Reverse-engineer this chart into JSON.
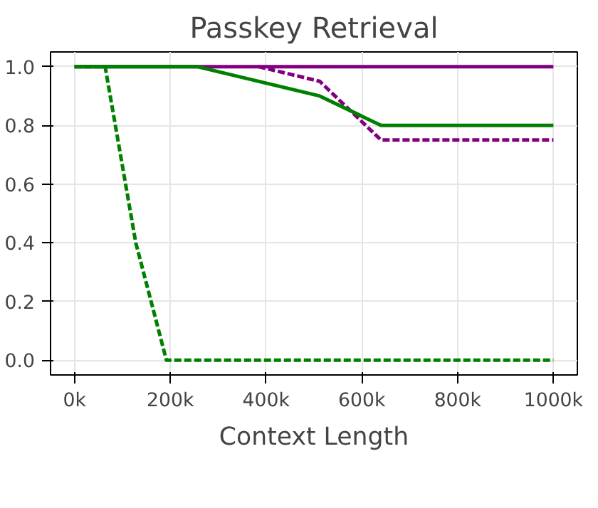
{
  "chart_data": {
    "type": "line",
    "title": "Passkey Retrieval",
    "xlabel": "Context Length",
    "series": [
      {
        "color": "#800080",
        "line_style": "solid",
        "x": [
          0,
          1000000
        ],
        "values": [
          1.0,
          1.0
        ]
      },
      {
        "color": "#800080",
        "line_style": "dashed",
        "x": [
          384000,
          512000,
          640000,
          1000000
        ],
        "values": [
          1.0,
          0.95,
          0.75,
          0.75
        ]
      },
      {
        "color": "#008000",
        "line_style": "solid",
        "x": [
          0,
          256000,
          512000,
          640000,
          1000000
        ],
        "values": [
          1.0,
          1.0,
          0.9,
          0.8,
          0.8
        ]
      },
      {
        "color": "#008000",
        "line_style": "dashed",
        "x": [
          0,
          64000,
          128000,
          192000,
          1000000
        ],
        "values": [
          1.0,
          1.0,
          0.4,
          0.0,
          0.0
        ]
      }
    ],
    "xlim": [
      -50000,
      1050000
    ],
    "ylim": [
      -0.05,
      1.05
    ],
    "xticks": [
      {
        "value": 0,
        "label": "0k"
      },
      {
        "value": 200000,
        "label": "200k"
      },
      {
        "value": 400000,
        "label": "400k"
      },
      {
        "value": 600000,
        "label": "600k"
      },
      {
        "value": 800000,
        "label": "800k"
      },
      {
        "value": 1000000,
        "label": "1000k"
      }
    ],
    "yticks": [
      {
        "value": 0,
        "label": "0.0"
      },
      {
        "value": 0.2,
        "label": "0.2"
      },
      {
        "value": 0.4,
        "label": "0.4"
      },
      {
        "value": 0.6,
        "label": "0.6"
      },
      {
        "value": 0.8,
        "label": "0.8"
      },
      {
        "value": 1.0,
        "label": "1.0"
      }
    ],
    "grid": true,
    "marker": "none"
  }
}
